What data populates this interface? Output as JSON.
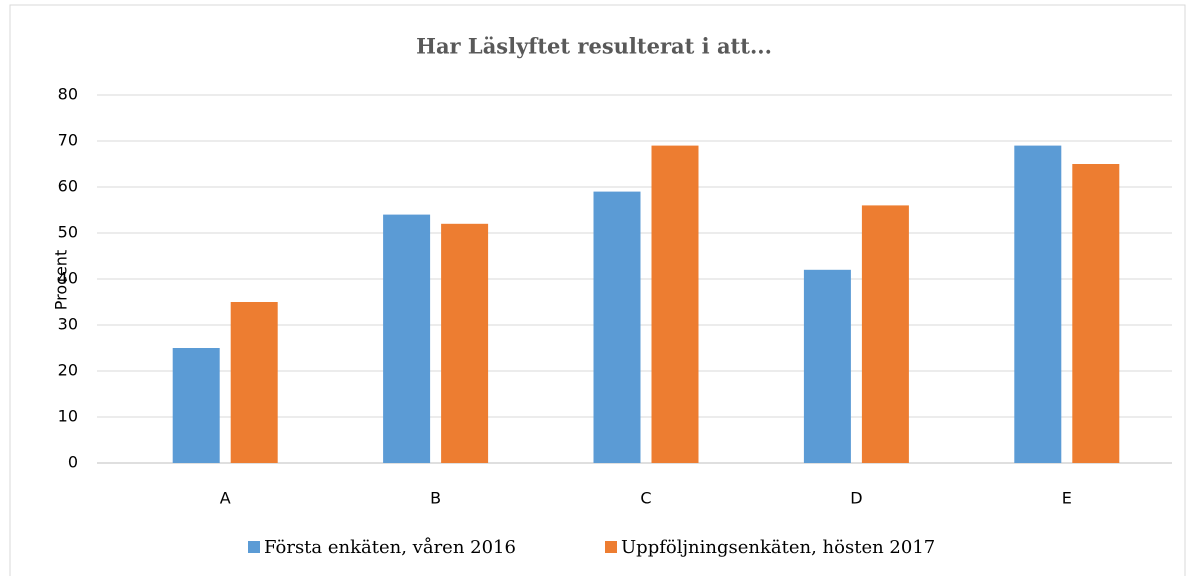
{
  "chart_data": {
    "type": "bar",
    "title": "Har Läslyftet resulterat i att...",
    "ylabel": "Procent",
    "categories": [
      "A",
      "B",
      "C",
      "D",
      "E"
    ],
    "series": [
      {
        "name": "Första enkäten, våren 2016",
        "color": "#5b9bd5",
        "values": [
          25,
          54,
          59,
          42,
          69
        ]
      },
      {
        "name": "Uppföljningsenkäten, hösten 2017",
        "color": "#ed7d31",
        "values": [
          35,
          52,
          69,
          56,
          65
        ]
      }
    ],
    "ylim": [
      0,
      80
    ],
    "yticks": [
      0,
      10,
      20,
      30,
      40,
      50,
      60,
      70,
      80
    ],
    "grid": true,
    "legend": "bottom"
  }
}
